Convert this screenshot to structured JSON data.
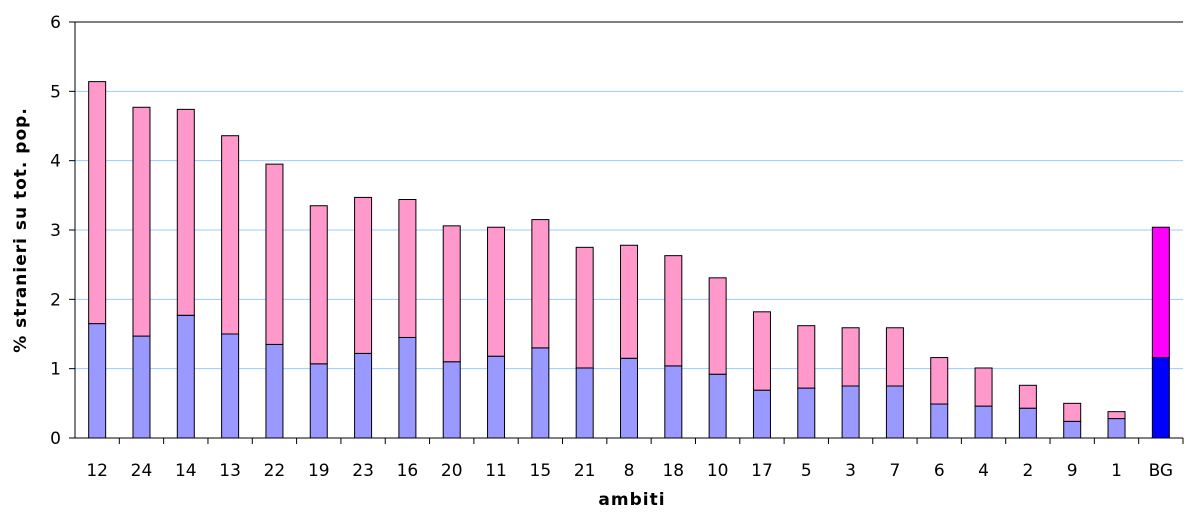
{
  "chart_data": {
    "type": "bar",
    "stacked": true,
    "xlabel": "ambiti",
    "ylabel": "% stranieri su tot. pop.",
    "ylim": [
      0,
      6
    ],
    "yticks": [
      0,
      1,
      2,
      3,
      4,
      5,
      6
    ],
    "grid": true,
    "legend": "none",
    "categories": [
      "12",
      "24",
      "14",
      "13",
      "22",
      "19",
      "23",
      "16",
      "20",
      "11",
      "15",
      "21",
      "8",
      "18",
      "10",
      "17",
      "5",
      "3",
      "7",
      "6",
      "4",
      "2",
      "9",
      "1",
      "BG"
    ],
    "series": [
      {
        "values": [
          1.65,
          1.47,
          1.77,
          1.5,
          1.35,
          1.07,
          1.22,
          1.45,
          1.1,
          1.18,
          1.3,
          1.01,
          1.15,
          1.04,
          0.92,
          0.69,
          0.72,
          0.75,
          0.75,
          0.49,
          0.46,
          0.43,
          0.24,
          0.28,
          1.16
        ]
      },
      {
        "values": [
          3.49,
          3.3,
          2.97,
          2.86,
          2.6,
          2.28,
          2.25,
          1.99,
          1.96,
          1.86,
          1.85,
          1.74,
          1.63,
          1.59,
          1.39,
          1.13,
          0.9,
          0.84,
          0.84,
          0.67,
          0.55,
          0.33,
          0.26,
          0.1,
          1.88
        ]
      }
    ],
    "colors": {
      "lower": "#9999ff",
      "upper": "#ff99cc",
      "lower_highlight": "#0000ff",
      "upper_highlight": "#ff00ff",
      "grid": "#99ccff",
      "bar_stroke": "#000000"
    },
    "highlight_category": "BG"
  }
}
